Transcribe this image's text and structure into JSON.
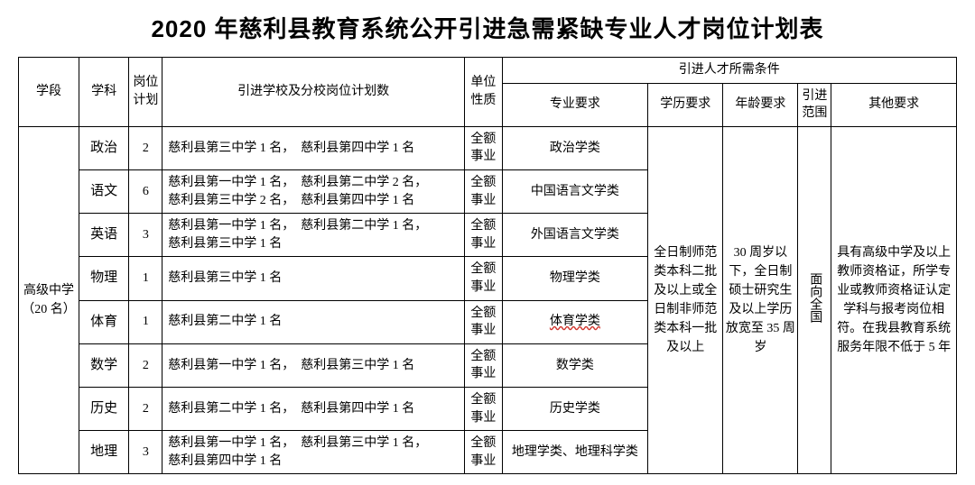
{
  "title": "2020 年慈利县教育系统公开引进急需紧缺专业人才岗位计划表",
  "headers": {
    "stage": "学段",
    "subject": "学科",
    "plan": "岗位计划",
    "schools": "引进学校及分校岗位计划数",
    "nature": "单位性质",
    "cond": "引进人才所需条件",
    "major": "专业要求",
    "edu": "学历要求",
    "age": "年龄要求",
    "scope": "引进范围",
    "other": "其他要求"
  },
  "stage": "高级中学（20 名）",
  "nature": "全额事业",
  "edu": "全日制师范类本科二批及以上或全日制非师范类本科一批及以上",
  "age": "30 周岁以下，全日制硕士研究生及以上学历放宽至 35 周岁",
  "scope": "面向全国",
  "other": "具有高级中学及以上教师资格证，所学专业或教师资格证认定学科与报考岗位相符。在我县教育系统服务年限不低于 5 年",
  "rows": [
    {
      "subject": "政治",
      "plan": "2",
      "schools": "慈利县第三中学 1 名，　慈利县第四中学 1 名",
      "major": "政治学类"
    },
    {
      "subject": "语文",
      "plan": "6",
      "schools": "慈利县第一中学 1 名，　慈利县第二中学 2 名，\n慈利县第三中学 2 名，　慈利县第四中学 1 名",
      "major": "中国语言文学类"
    },
    {
      "subject": "英语",
      "plan": "3",
      "schools": "慈利县第一中学 1 名，　慈利县第二中学 1 名，\n慈利县第三中学 1 名",
      "major": "外国语言文学类"
    },
    {
      "subject": "物理",
      "plan": "1",
      "schools": "慈利县第三中学 1 名",
      "major": "物理学类"
    },
    {
      "subject": "体育",
      "plan": "1",
      "schools": "慈利县第二中学 1 名",
      "major": "体育学类",
      "wavy": true
    },
    {
      "subject": "数学",
      "plan": "2",
      "schools": "慈利县第一中学 1 名，　慈利县第三中学 1 名",
      "major": "数学类"
    },
    {
      "subject": "历史",
      "plan": "2",
      "schools": "慈利县第二中学 1 名，　慈利县第四中学 1 名",
      "major": "历史学类"
    },
    {
      "subject": "地理",
      "plan": "3",
      "schools": "慈利县第一中学 1 名，　慈利县第三中学 1 名，\n慈利县第四中学 1 名",
      "major": "地理学类、地理科学类"
    }
  ]
}
